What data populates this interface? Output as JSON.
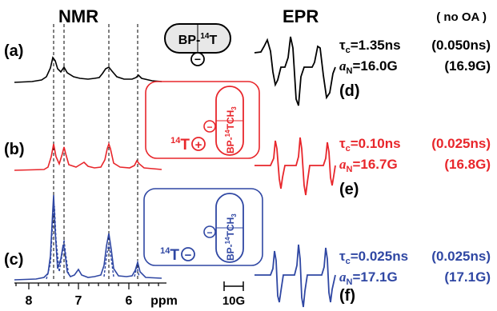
{
  "headers": {
    "nmr": "NMR",
    "epr": "EPR"
  },
  "panels": {
    "a": "(a)",
    "b": "(b)",
    "c": "(c)",
    "d": "(d)",
    "e": "(e)",
    "f": "(f)"
  },
  "nmr_axis": {
    "ticks": [
      "8",
      "7",
      "6"
    ],
    "unit": "ppm"
  },
  "scale_bar": "10G",
  "capsules": {
    "top": {
      "name": "BP-",
      "sup": "14",
      "suffix": "T",
      "charge": "−"
    },
    "middle": {
      "guest_sup": "14",
      "guest": "T",
      "guest_charge": "+",
      "host_prefix": "BP-",
      "host_sup": "14",
      "host_suffix": "TCH",
      "host_sub": "3",
      "host_charge": "−"
    },
    "bottom": {
      "guest_sup": "14",
      "guest": "T",
      "guest_charge": "−",
      "host_prefix": "BP-",
      "host_sup": "14",
      "host_suffix": "TCH",
      "host_sub": "3",
      "host_charge": "−"
    }
  },
  "params": {
    "note": "( no OA )",
    "rows": [
      {
        "tau_sym": "τ",
        "tau_sub": "c",
        "tau_eq": "=1.35ns",
        "tau_ref": "(0.050ns)",
        "a_sym": "a",
        "a_sub": "N",
        "a_eq": "=16.0G",
        "a_ref": "(16.9G)"
      },
      {
        "tau_sym": "τ",
        "tau_sub": "c",
        "tau_eq": "=0.10ns",
        "tau_ref": "(0.025ns)",
        "a_sym": "a",
        "a_sub": "N",
        "a_eq": "=16.7G",
        "a_ref": "(16.8G)"
      },
      {
        "tau_sym": "τ",
        "tau_sub": "c",
        "tau_eq": "=0.025ns",
        "tau_ref": "(0.025ns)",
        "a_sym": "a",
        "a_sub": "N",
        "a_eq": "=17.1G",
        "a_ref": "(17.1G)"
      }
    ]
  },
  "colors": {
    "a": "#000000",
    "b": "#e8262b",
    "c": "#2f47a3"
  }
}
